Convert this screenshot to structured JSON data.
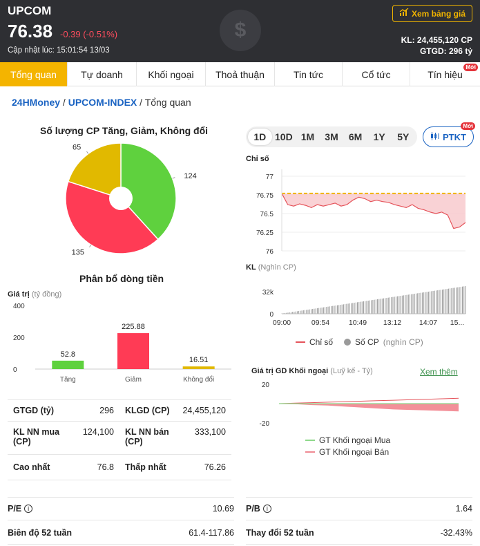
{
  "header": {
    "title": "UPCOM",
    "price": "76.38",
    "change": "-0.39 (-0.51%)",
    "update": "Cập nhật lúc: 15:01:54 13/03",
    "price_board_btn": "Xem bảng giá",
    "kl": "KL: 24,455,120 CP",
    "gtgd": "GTGD: 296 tỷ"
  },
  "tabs": [
    {
      "label": "Tổng quan"
    },
    {
      "label": "Tự doanh"
    },
    {
      "label": "Khối ngoại"
    },
    {
      "label": "Thoả thuận"
    },
    {
      "label": "Tin tức"
    },
    {
      "label": "Cổ tức"
    },
    {
      "label": "Tín hiệu",
      "badge": "Mới"
    }
  ],
  "breadcrumb": {
    "home": "24HMoney",
    "index": "UPCOM-INDEX",
    "sep": " / ",
    "current": "Tổng quan"
  },
  "pie": {
    "title": "Số lượng CP Tăng, Giảm, Không đổi",
    "chart_data": {
      "type": "pie",
      "labels": [
        "124",
        "135",
        "65"
      ],
      "values": [
        124,
        135,
        65
      ],
      "colors": [
        "#5fd13e",
        "#ff3b55",
        "#e1b900"
      ]
    }
  },
  "flow": {
    "title": "Phân bổ dòng tiền",
    "ylabel": "Giá trị",
    "yunit": "(tỷ đồng)",
    "chart_data": {
      "type": "bar",
      "categories": [
        "Tăng",
        "Giảm",
        "Không đổi"
      ],
      "values": [
        52.8,
        225.88,
        16.51
      ],
      "value_labels": [
        "52.8",
        "225.88",
        "16.51"
      ],
      "ylim": [
        0,
        400
      ],
      "yticks": [
        "400",
        "200",
        "0"
      ],
      "colors": [
        "#5fd13e",
        "#ff3b55",
        "#e1b900"
      ]
    }
  },
  "stats": [
    [
      {
        "label": "GTGD (tỷ)",
        "value": "296"
      },
      {
        "label": "KLGD (CP)",
        "value": "24,455,120"
      }
    ],
    [
      {
        "label": "KL NN mua (CP)",
        "value": "124,100"
      },
      {
        "label": "KL NN bán (CP)",
        "value": "333,100"
      }
    ],
    [
      {
        "label": "Cao nhất",
        "value": "76.8"
      },
      {
        "label": "Thấp nhất",
        "value": "76.26"
      }
    ]
  ],
  "bottom": {
    "pe_label": "P/E",
    "pe_value": "10.69",
    "pb_label": "P/B",
    "pb_value": "1.64",
    "range_label": "Biên độ 52 tuần",
    "range_value": "61.4-117.86",
    "change_label": "Thay đổi 52 tuần",
    "change_value": "-32.43%"
  },
  "periods": [
    {
      "label": "1D",
      "active": true
    },
    {
      "label": "10D"
    },
    {
      "label": "1M"
    },
    {
      "label": "3M"
    },
    {
      "label": "6M"
    },
    {
      "label": "1Y"
    },
    {
      "label": "5Y"
    }
  ],
  "ptkt": {
    "label": "PTKT",
    "badge": "Mới"
  },
  "index_chart": {
    "ylabel": "Chỉ số",
    "kl_label": "KL",
    "kl_unit": "(Nghìn CP)",
    "yticks": [
      "77",
      "76.75",
      "76.5",
      "76.25",
      "76"
    ],
    "kl_ticks": [
      "32k",
      "0"
    ],
    "xticks": [
      "09:00",
      "09:54",
      "10:49",
      "13:12",
      "14:07",
      "15..."
    ],
    "legend_index": "Chỉ số",
    "legend_volume": "Số CP",
    "legend_volume_unit": "(nghìn CP)",
    "chart_data": {
      "type": "line",
      "reference": 76.77,
      "ylim": [
        76,
        77
      ],
      "series": [
        {
          "name": "Chỉ số",
          "values": [
            76.77,
            76.62,
            76.6,
            76.63,
            76.61,
            76.58,
            76.62,
            76.6,
            76.62,
            76.64,
            76.6,
            76.62,
            76.68,
            76.72,
            76.7,
            76.66,
            76.68,
            76.66,
            76.65,
            76.62,
            76.6,
            76.58,
            76.62,
            76.57,
            76.55,
            76.52,
            76.5,
            76.52,
            76.48,
            76.3,
            76.32,
            76.38
          ]
        }
      ],
      "volume_ylim": [
        0,
        32
      ],
      "volume_series": {
        "name": "Số CP",
        "values_growth": "cumulative"
      }
    }
  },
  "foreign": {
    "title": "Giá trị GD Khối ngoại",
    "unit": "(Luỹ kế - Tỷ)",
    "more": "Xem thêm",
    "yticks": [
      "20",
      "-20"
    ],
    "legend_buy": "GT Khối ngoại Mua",
    "legend_sell": "GT Khối ngoại Bán",
    "chart_data": {
      "type": "area",
      "ylim": [
        -20,
        20
      ],
      "series": [
        {
          "name": "GT Khối ngoại Mua",
          "values": [
            0,
            0.5,
            1,
            1.5,
            2,
            2.5,
            3,
            3.5,
            4,
            4.5,
            5,
            5.5
          ]
        },
        {
          "name": "GT Khối ngoại Bán",
          "values": [
            0,
            -0.5,
            -1.5,
            -2,
            -3,
            -4,
            -5,
            -6,
            -6.5,
            -7,
            -7.5,
            -8
          ]
        }
      ]
    }
  }
}
